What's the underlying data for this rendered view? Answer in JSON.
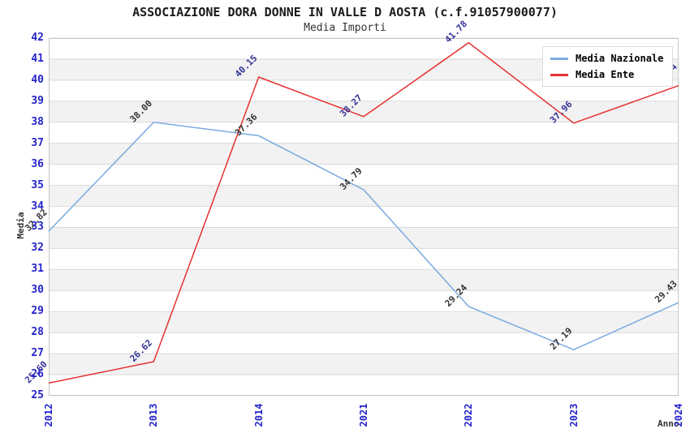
{
  "header": {
    "title": "ASSOCIAZIONE DORA DONNE IN VALLE D AOSTA (c.f.91057900077)",
    "subtitle": "Media Importi"
  },
  "axes": {
    "y_title": "Media",
    "x_title": "Anno",
    "y_ticks": [
      42,
      41,
      40,
      39,
      38,
      37,
      36,
      35,
      34,
      33,
      32,
      31,
      30,
      29,
      28,
      27,
      26,
      25
    ],
    "x_ticks": [
      "2012",
      "2013",
      "2014",
      "2021",
      "2022",
      "2023",
      "2024"
    ],
    "tick_color": "#2323cc"
  },
  "legend": {
    "items": [
      {
        "label": "Media Nazionale"
      },
      {
        "label": "Media Ente"
      }
    ]
  },
  "colors": {
    "band": "#f2f2f2",
    "grid": "#d9d9d9",
    "border": "#c8c8c8",
    "nazionale_line": "#7aabe0",
    "ente_line": "#e63030",
    "nazionale_label": "#333333",
    "ente_label": "#333399"
  },
  "chart_data": {
    "type": "line",
    "title": "ASSOCIAZIONE DORA DONNE IN VALLE D AOSTA (c.f.91057900077)",
    "subtitle": "Media Importi",
    "categories": [
      "2012",
      "2013",
      "2014",
      "2021",
      "2022",
      "2023",
      "2024"
    ],
    "series": [
      {
        "name": "Media Nazionale",
        "color": "#7aabe0",
        "label_color": "#333333",
        "values": [
          32.82,
          38.0,
          37.36,
          34.79,
          29.24,
          27.19,
          29.43
        ]
      },
      {
        "name": "Media Ente",
        "color": "#e63030",
        "label_color": "#333399",
        "values": [
          25.6,
          26.62,
          40.15,
          38.27,
          41.78,
          37.96,
          39.74
        ]
      }
    ],
    "xlabel": "Anno",
    "ylabel": "Media",
    "ylim": [
      25,
      42
    ],
    "y_tick_step": 1,
    "grid": true,
    "band_shading": "alternating",
    "point_labels": "values shown rotated -45deg at each point",
    "legend_position": "top-right"
  }
}
